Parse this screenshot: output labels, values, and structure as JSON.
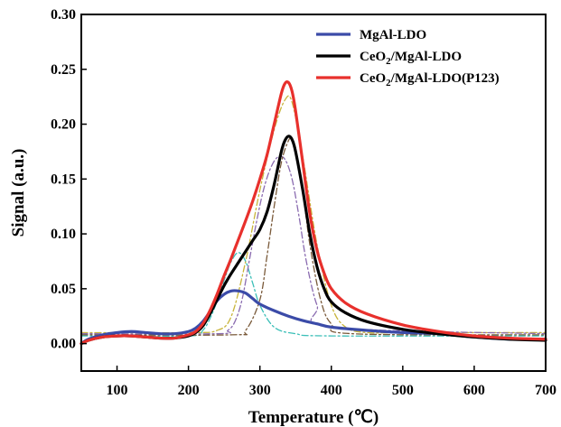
{
  "chart_data": {
    "type": "line",
    "xlabel": "Temperature (℃)",
    "ylabel": "Signal (a.u.)",
    "xlim": [
      50,
      700
    ],
    "ylim": [
      -0.025,
      0.3
    ],
    "x_ticks": [
      100,
      200,
      300,
      400,
      500,
      600,
      700
    ],
    "y_ticks": [
      0.0,
      0.05,
      0.1,
      0.15,
      0.2,
      0.25,
      0.3
    ],
    "x_tick_labels": [
      "100",
      "200",
      "300",
      "400",
      "500",
      "600",
      "700"
    ],
    "y_tick_labels": [
      "0.00",
      "0.05",
      "0.10",
      "0.15",
      "0.20",
      "0.25",
      "0.30"
    ],
    "grid": false,
    "legend_position": "top-right",
    "series": [
      {
        "name": "MgAl-LDO",
        "legend_main": "MgAl-LDO",
        "legend_sub": "",
        "legend_tail": "",
        "color": "#3b4ba8",
        "style": "solid",
        "x": [
          50,
          60,
          80,
          100,
          120,
          140,
          160,
          180,
          200,
          210,
          220,
          230,
          240,
          250,
          260,
          270,
          280,
          290,
          300,
          320,
          340,
          360,
          380,
          400,
          450,
          500,
          550,
          600,
          650,
          700
        ],
        "y": [
          0.0,
          0.004,
          0.008,
          0.01,
          0.011,
          0.01,
          0.009,
          0.009,
          0.011,
          0.014,
          0.02,
          0.029,
          0.039,
          0.045,
          0.048,
          0.048,
          0.046,
          0.041,
          0.036,
          0.03,
          0.025,
          0.021,
          0.018,
          0.015,
          0.012,
          0.01,
          0.009,
          0.006,
          0.004,
          0.004
        ]
      },
      {
        "name": "CeO2/MgAl-LDO",
        "legend_main": "CeO",
        "legend_sub": "2",
        "legend_tail": "/MgAl-LDO",
        "color": "#000000",
        "style": "solid",
        "x": [
          50,
          60,
          80,
          100,
          120,
          140,
          160,
          180,
          200,
          210,
          220,
          230,
          240,
          250,
          260,
          270,
          280,
          290,
          300,
          310,
          320,
          330,
          335,
          340,
          345,
          350,
          360,
          370,
          380,
          390,
          400,
          420,
          450,
          500,
          550,
          600,
          650,
          700
        ],
        "y": [
          0.0,
          0.003,
          0.006,
          0.007,
          0.007,
          0.006,
          0.005,
          0.005,
          0.007,
          0.01,
          0.016,
          0.027,
          0.04,
          0.053,
          0.064,
          0.074,
          0.084,
          0.094,
          0.104,
          0.12,
          0.145,
          0.175,
          0.185,
          0.189,
          0.186,
          0.175,
          0.14,
          0.1,
          0.07,
          0.05,
          0.038,
          0.028,
          0.02,
          0.013,
          0.009,
          0.006,
          0.004,
          0.003
        ]
      },
      {
        "name": "CeO2/MgAl-LDO(P123)",
        "legend_main": "CeO",
        "legend_sub": "2",
        "legend_tail": "/MgAl-LDO(P123)",
        "color": "#e8302c",
        "style": "solid",
        "x": [
          50,
          60,
          80,
          100,
          120,
          140,
          160,
          180,
          200,
          210,
          220,
          230,
          240,
          250,
          260,
          270,
          280,
          290,
          300,
          310,
          320,
          330,
          335,
          340,
          345,
          350,
          360,
          370,
          380,
          390,
          400,
          420,
          450,
          500,
          550,
          600,
          650,
          700
        ],
        "y": [
          0.0,
          0.003,
          0.006,
          0.007,
          0.007,
          0.006,
          0.005,
          0.005,
          0.008,
          0.011,
          0.018,
          0.03,
          0.045,
          0.062,
          0.078,
          0.095,
          0.112,
          0.13,
          0.15,
          0.172,
          0.2,
          0.228,
          0.237,
          0.238,
          0.23,
          0.212,
          0.165,
          0.118,
          0.085,
          0.064,
          0.05,
          0.037,
          0.027,
          0.017,
          0.011,
          0.007,
          0.005,
          0.004
        ]
      },
      {
        "name": "",
        "color": "#c8b43a",
        "style": "dashdot",
        "x": [
          50,
          200,
          240,
          260,
          280,
          300,
          320,
          335,
          345,
          360,
          380,
          400,
          420,
          450,
          500,
          700
        ],
        "y": [
          0.01,
          0.01,
          0.012,
          0.025,
          0.075,
          0.14,
          0.195,
          0.222,
          0.22,
          0.17,
          0.09,
          0.035,
          0.015,
          0.01,
          0.01,
          0.01
        ]
      },
      {
        "name": "",
        "color": "#3cbfb8",
        "style": "dashdot",
        "x": [
          50,
          200,
          220,
          235,
          250,
          260,
          270,
          280,
          290,
          300,
          320,
          350,
          400,
          700
        ],
        "y": [
          0.007,
          0.007,
          0.012,
          0.03,
          0.058,
          0.075,
          0.083,
          0.075,
          0.055,
          0.035,
          0.015,
          0.009,
          0.007,
          0.007
        ]
      },
      {
        "name": "",
        "color": "#8a6bb0",
        "style": "dashdot",
        "x": [
          50,
          240,
          255,
          265,
          275,
          285,
          295,
          305,
          315,
          325,
          335,
          345,
          355,
          365,
          380,
          400,
          700
        ],
        "y": [
          0.009,
          0.009,
          0.012,
          0.02,
          0.04,
          0.075,
          0.11,
          0.14,
          0.16,
          0.17,
          0.168,
          0.15,
          0.115,
          0.075,
          0.035,
          0.015,
          0.009
        ]
      },
      {
        "name": "",
        "color": "#7a5a3a",
        "style": "dashdot",
        "x": [
          50,
          260,
          280,
          300,
          310,
          320,
          330,
          340,
          345,
          350,
          360,
          370,
          385,
          400,
          430,
          700
        ],
        "y": [
          0.008,
          0.008,
          0.012,
          0.04,
          0.08,
          0.125,
          0.165,
          0.185,
          0.186,
          0.178,
          0.14,
          0.09,
          0.04,
          0.018,
          0.009,
          0.008
        ]
      }
    ]
  }
}
